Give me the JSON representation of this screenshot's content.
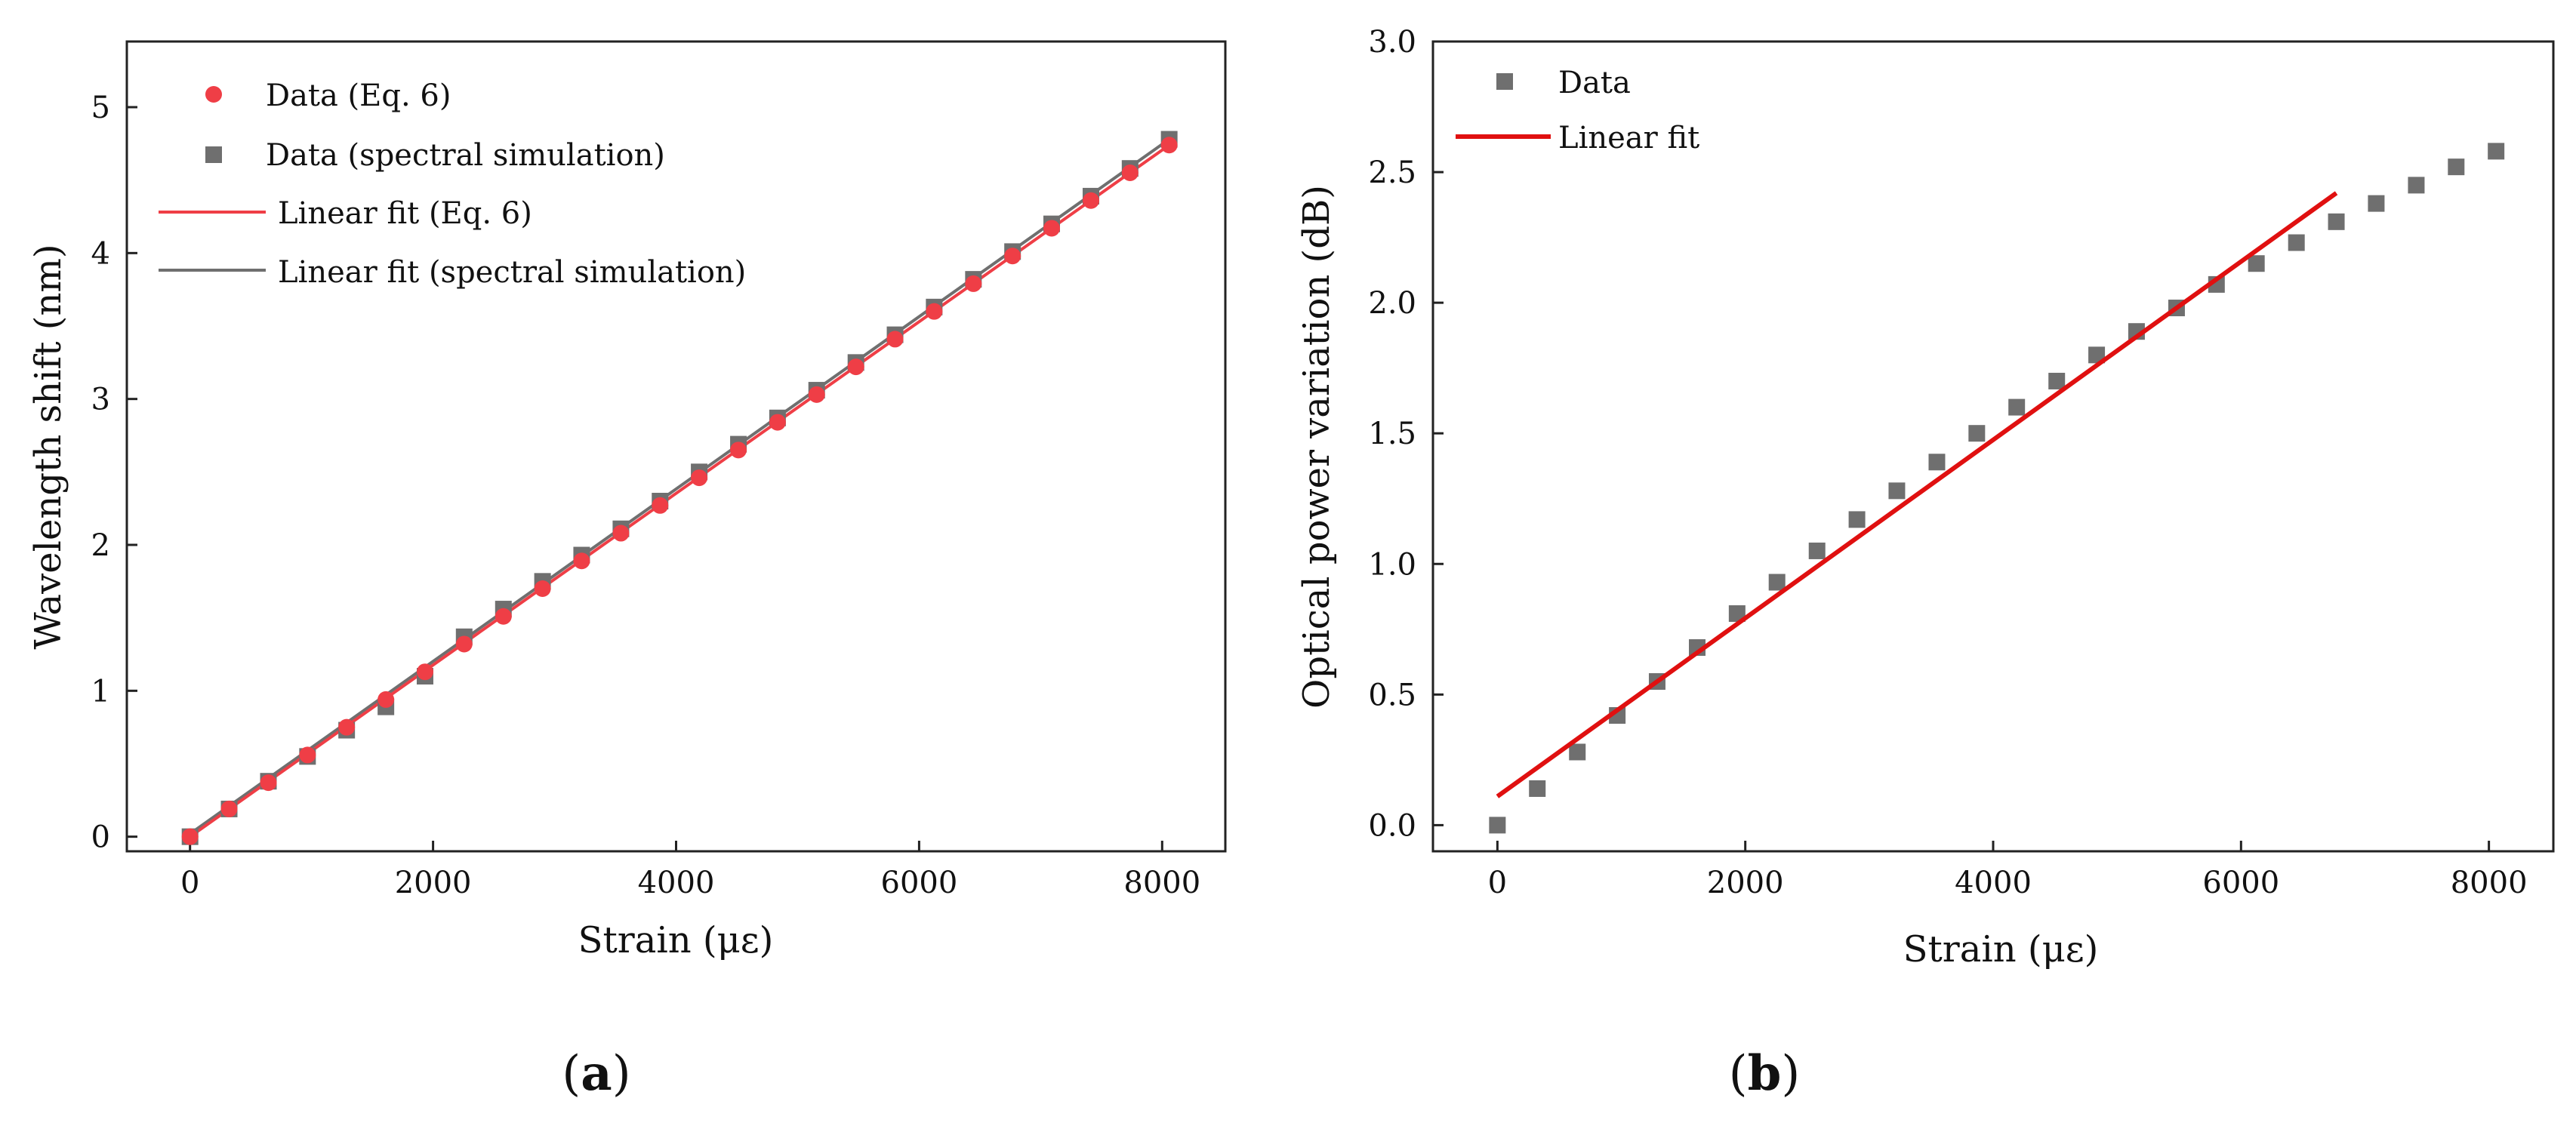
{
  "chart_data": [
    {
      "panel": "a",
      "type": "scatter",
      "xlabel": "Strain (με)",
      "ylabel": "Wavelength shift (nm)",
      "xlim": [
        -520,
        8520
      ],
      "ylim": [
        -0.1,
        5.45
      ],
      "xticks": [
        0,
        2000,
        4000,
        6000,
        8000
      ],
      "yticks": [
        0,
        1,
        2,
        3,
        4,
        5
      ],
      "panel_label": "(a)",
      "legend_position": "top-left",
      "x": [
        0,
        322,
        645,
        967,
        1289,
        1612,
        1934,
        2256,
        2579,
        2901,
        3223,
        3546,
        3868,
        4190,
        4513,
        4835,
        5157,
        5480,
        5802,
        6124,
        6447,
        6769,
        7091,
        7414,
        7736,
        8058
      ],
      "series": [
        {
          "name": "Data (Eq. 6)",
          "kind": "marker-circle",
          "color": "#ef3e46",
          "values": [
            0.0,
            0.19,
            0.37,
            0.56,
            0.75,
            0.94,
            1.13,
            1.32,
            1.51,
            1.7,
            1.89,
            2.08,
            2.27,
            2.46,
            2.65,
            2.84,
            3.03,
            3.22,
            3.41,
            3.6,
            3.79,
            3.98,
            4.17,
            4.36,
            4.55,
            4.74
          ]
        },
        {
          "name": "Data (spectral simulation)",
          "kind": "marker-square",
          "color": "#6f6f6f",
          "values": [
            0.0,
            0.19,
            0.38,
            0.55,
            0.73,
            0.89,
            1.1,
            1.37,
            1.56,
            1.75,
            1.93,
            2.11,
            2.3,
            2.5,
            2.69,
            2.87,
            3.06,
            3.25,
            3.44,
            3.63,
            3.82,
            4.01,
            4.2,
            4.39,
            4.58,
            4.78
          ]
        },
        {
          "name": "Linear fit (Eq. 6)",
          "kind": "line",
          "color": "#ef3e46",
          "x": [
            0,
            8058
          ],
          "values": [
            0.0,
            4.74
          ]
        },
        {
          "name": "Linear fit (spectral simulation)",
          "kind": "line",
          "color": "#6f6f6f",
          "x": [
            0,
            8058
          ],
          "values": [
            0.02,
            4.78
          ]
        }
      ]
    },
    {
      "panel": "b",
      "type": "scatter",
      "xlabel": "Strain (με)",
      "ylabel": "Optical power variation (dB)",
      "xlim": [
        -520,
        8520
      ],
      "ylim": [
        -0.1,
        3.0
      ],
      "xticks": [
        0,
        2000,
        4000,
        6000,
        8000
      ],
      "yticks": [
        0.0,
        0.5,
        1.0,
        1.5,
        2.0,
        2.5,
        3.0
      ],
      "ytick_labels": [
        "0.0",
        "0.5",
        "1.0",
        "1.5",
        "2.0",
        "2.5",
        "3.0"
      ],
      "panel_label": "(b)",
      "legend_position": "top-left",
      "x": [
        0,
        322,
        645,
        967,
        1289,
        1612,
        1934,
        2256,
        2579,
        2901,
        3223,
        3546,
        3868,
        4190,
        4513,
        4835,
        5157,
        5480,
        5802,
        6124,
        6447,
        6769,
        7091,
        7414,
        7736,
        8058
      ],
      "series": [
        {
          "name": "Data",
          "kind": "marker-square",
          "color": "#6f6f6f",
          "values": [
            0.0,
            0.14,
            0.28,
            0.42,
            0.55,
            0.68,
            0.81,
            0.93,
            1.05,
            1.17,
            1.28,
            1.39,
            1.5,
            1.6,
            1.7,
            1.8,
            1.89,
            1.98,
            2.07,
            2.15,
            2.23,
            2.31,
            2.38,
            2.45,
            2.52,
            2.58
          ]
        },
        {
          "name": "Linear fit",
          "kind": "line",
          "color": "#e01010",
          "x": [
            0,
            6769
          ],
          "values": [
            0.11,
            2.42
          ]
        }
      ]
    }
  ]
}
